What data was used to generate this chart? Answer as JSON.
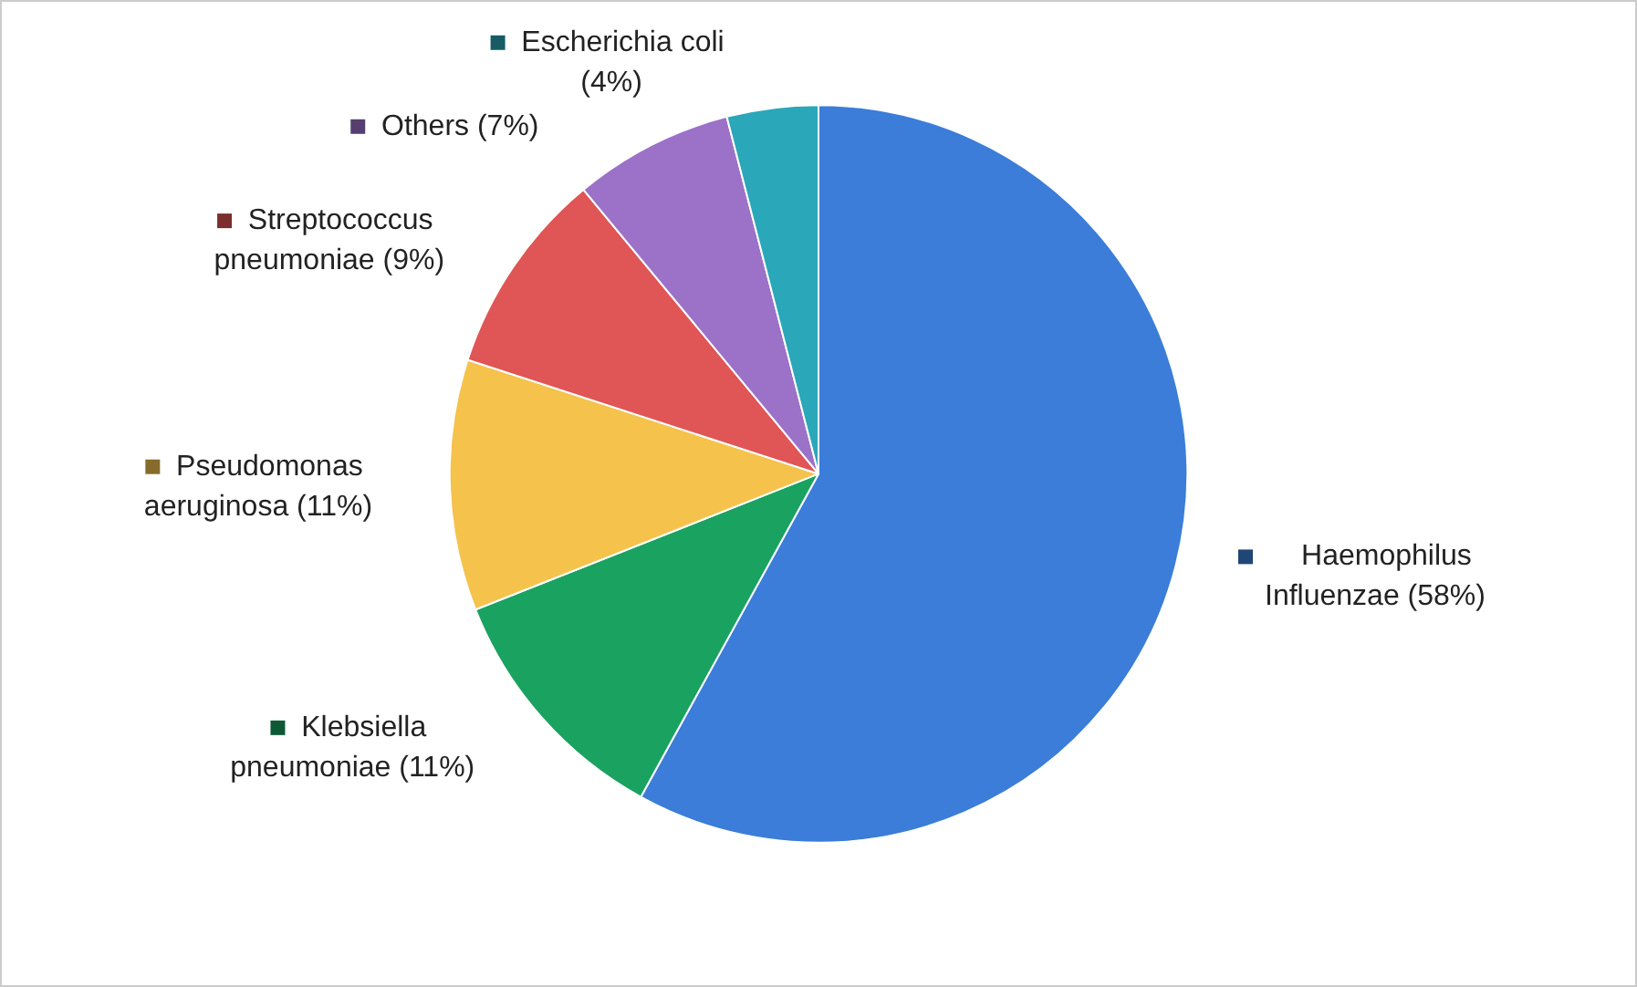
{
  "chart_data": {
    "type": "pie",
    "categories": [
      "Haemophilus Influenzae",
      "Klebsiella pneumoniae",
      "Pseudomonas aeruginosa",
      "Streptococcus pneumoniae",
      "Others",
      "Escherichia coli"
    ],
    "values": [
      58,
      11,
      11,
      9,
      7,
      4
    ],
    "colors": [
      "#3b7dd8",
      "#1aa260",
      "#f5c24c",
      "#e05555",
      "#9b72c8",
      "#2aa7b8"
    ],
    "value_labels": [
      "(58%)",
      "(11%)",
      "(11%)",
      "(9%)",
      "(7%)",
      "(4%)"
    ],
    "legend": false
  }
}
